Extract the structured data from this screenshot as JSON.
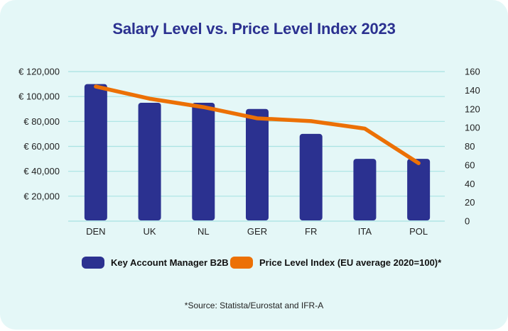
{
  "chart_data": {
    "type": "bar",
    "title": "Salary Level vs. Price Level Index 2023",
    "categories": [
      "DEN",
      "UK",
      "NL",
      "GER",
      "FR",
      "ITA",
      "POL"
    ],
    "series": [
      {
        "name": "Key Account Manager B2B",
        "type": "bar",
        "axis": "left",
        "color": "#2b3190",
        "values": [
          110000,
          95000,
          95000,
          90000,
          70000,
          50000,
          50000
        ]
      },
      {
        "name": "Price Level Index (EU average 2020=100)*",
        "type": "line",
        "axis": "right",
        "color": "#ec7005",
        "values": [
          144,
          131,
          122,
          110,
          107,
          99,
          62
        ]
      }
    ],
    "left_axis": {
      "ylim": [
        0,
        120000
      ],
      "ticks": [
        20000,
        40000,
        60000,
        80000,
        100000,
        120000
      ],
      "tick_labels": [
        "€ 20,000",
        "€ 40,000",
        "€ 60,000",
        "€ 80,000",
        "€ 100,000",
        "€ 120,000"
      ]
    },
    "right_axis": {
      "ylim": [
        0,
        160
      ],
      "ticks": [
        0,
        20,
        40,
        60,
        80,
        100,
        120,
        140,
        160
      ],
      "tick_labels": [
        "0",
        "20",
        "40",
        "60",
        "80",
        "100",
        "120",
        "140",
        "160"
      ]
    },
    "grid": true,
    "gridline_color": "#a8e3e3",
    "legend_position": "bottom",
    "xlabel": "",
    "ylabel": "",
    "annotation": "*Source: Statista/Eurostat and IFR-A"
  },
  "colors": {
    "background": "#e4f7f7",
    "title": "#2b3190"
  },
  "legend": [
    {
      "label": "Key Account Manager B2B",
      "color": "#2b3190"
    },
    {
      "label": "Price Level Index (EU average 2020=100)*",
      "color": "#ec7005"
    }
  ]
}
